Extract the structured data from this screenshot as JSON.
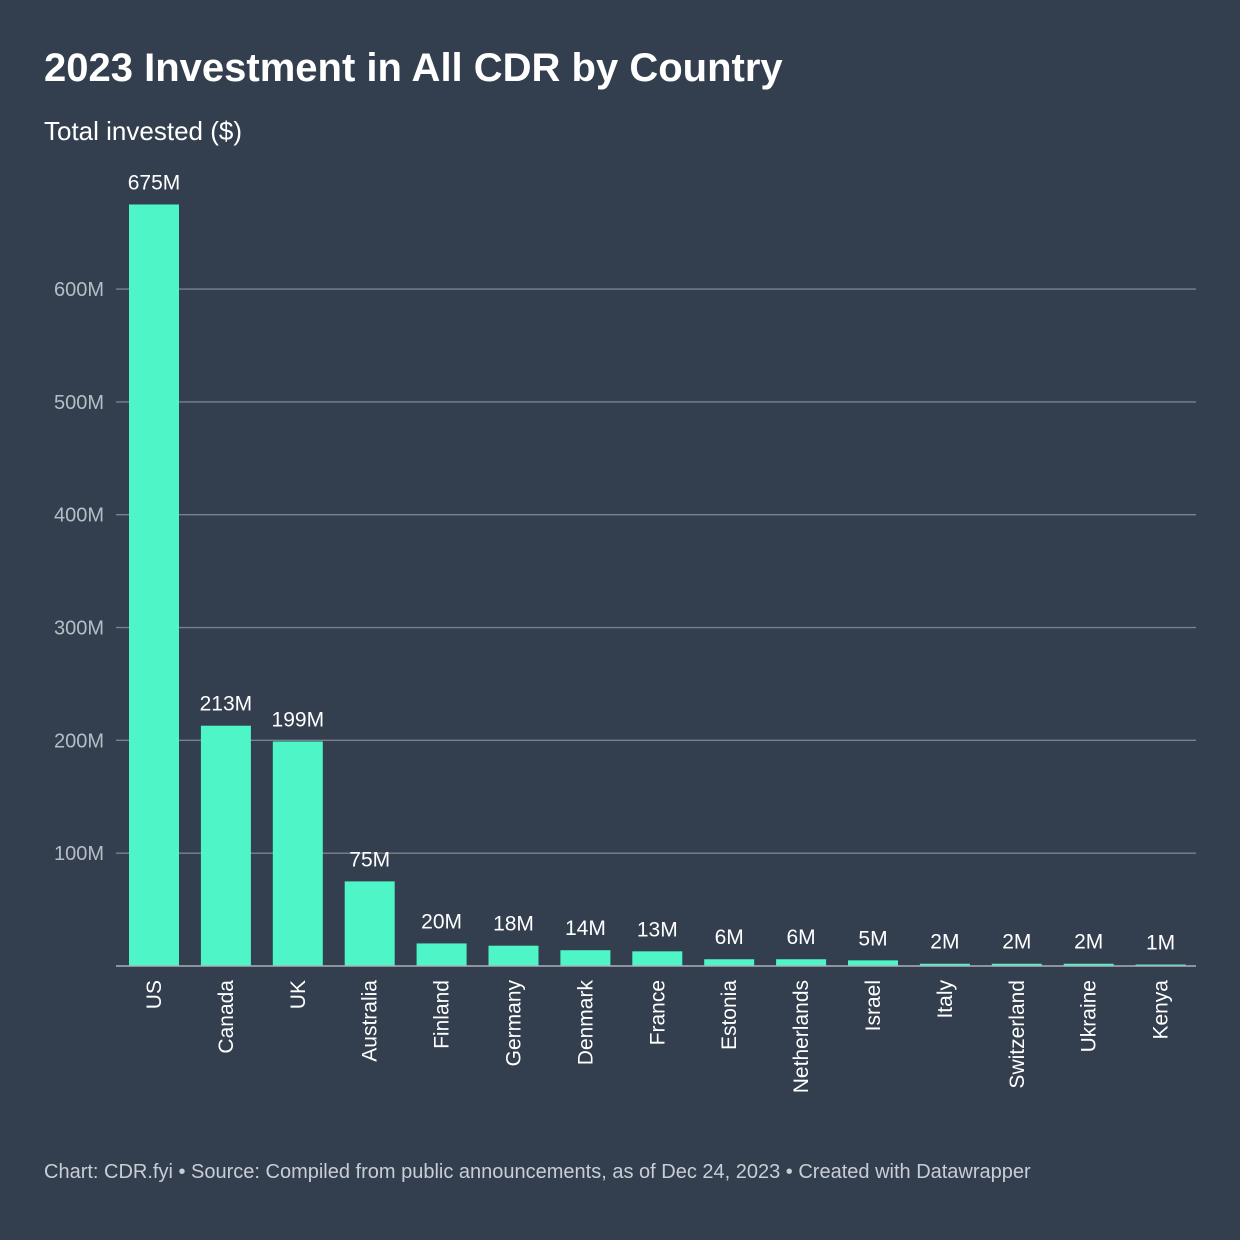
{
  "chart_data": {
    "type": "bar",
    "title": "2023 Investment in All CDR by Country",
    "subtitle": "Total invested ($)",
    "categories": [
      "US",
      "Canada",
      "UK",
      "Australia",
      "Finland",
      "Germany",
      "Denmark",
      "France",
      "Estonia",
      "Netherlands",
      "Israel",
      "Italy",
      "Switzerland",
      "Ukraine",
      "Kenya"
    ],
    "values": [
      675,
      213,
      199,
      75,
      20,
      18,
      14,
      13,
      6,
      6,
      5,
      2,
      2,
      2,
      1
    ],
    "value_labels": [
      "675M",
      "213M",
      "199M",
      "75M",
      "20M",
      "18M",
      "14M",
      "13M",
      "6M",
      "6M",
      "5M",
      "2M",
      "2M",
      "2M",
      "1M"
    ],
    "unit": "M",
    "y_ticks": [
      100,
      200,
      300,
      400,
      500,
      600
    ],
    "y_tick_labels": [
      "100M",
      "200M",
      "300M",
      "400M",
      "500M",
      "600M"
    ],
    "ylim": [
      0,
      675
    ],
    "grid": true,
    "bar_color": "#4ef5c7",
    "background": "#333e4e",
    "grid_color": "#7b828c"
  },
  "footer": "Chart: CDR.fyi • Source: Compiled from public announcements, as of Dec 24, 2023 • Created with Datawrapper"
}
